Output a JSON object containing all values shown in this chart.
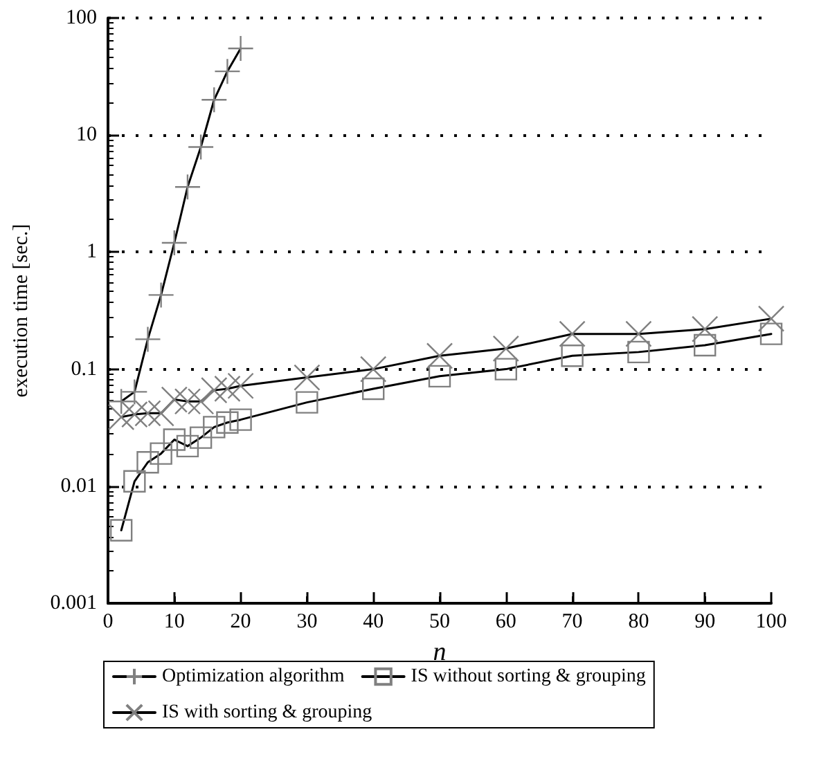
{
  "chart_data": {
    "type": "line",
    "xlabel": "n",
    "ylabel": "execution time [sec.]",
    "xlim": [
      0,
      100
    ],
    "xticks": [
      0,
      10,
      20,
      30,
      40,
      50,
      60,
      70,
      80,
      90,
      100
    ],
    "ylim": [
      0.001,
      100
    ],
    "yticks": [
      0.001,
      0.01,
      0.1,
      1,
      10,
      100
    ],
    "log": "y",
    "grid": "y",
    "legend": "bottom",
    "series": [
      {
        "name": "Optimization algorithm",
        "color": "#000000",
        "marker": "plus",
        "x": [
          2,
          4,
          6,
          8,
          10,
          12,
          14,
          16,
          18,
          20
        ],
        "values": [
          0.053,
          0.064,
          0.18,
          0.43,
          1.2,
          3.6,
          7.9,
          20,
          35,
          55
        ]
      },
      {
        "name": "IS without sorting & grouping",
        "color": "#000000",
        "marker": "square",
        "x": [
          2,
          4,
          6,
          8,
          10,
          12,
          14,
          16,
          18,
          20,
          30,
          40,
          50,
          60,
          70,
          80,
          90,
          100
        ],
        "values": [
          0.0042,
          0.011,
          0.016,
          0.019,
          0.025,
          0.022,
          0.026,
          0.032,
          0.035,
          0.037,
          0.052,
          0.068,
          0.087,
          0.1,
          0.13,
          0.14,
          0.16,
          0.2
        ]
      },
      {
        "name": "IS with sorting & grouping",
        "color": "#000000",
        "marker": "cross",
        "x": [
          2,
          4,
          6,
          8,
          10,
          12,
          14,
          16,
          18,
          20,
          30,
          40,
          50,
          60,
          70,
          80,
          90,
          100
        ],
        "values": [
          0.039,
          0.041,
          0.042,
          0.042,
          0.055,
          0.053,
          0.053,
          0.066,
          0.068,
          0.072,
          0.085,
          0.1,
          0.13,
          0.15,
          0.2,
          0.2,
          0.22,
          0.27
        ]
      }
    ]
  }
}
